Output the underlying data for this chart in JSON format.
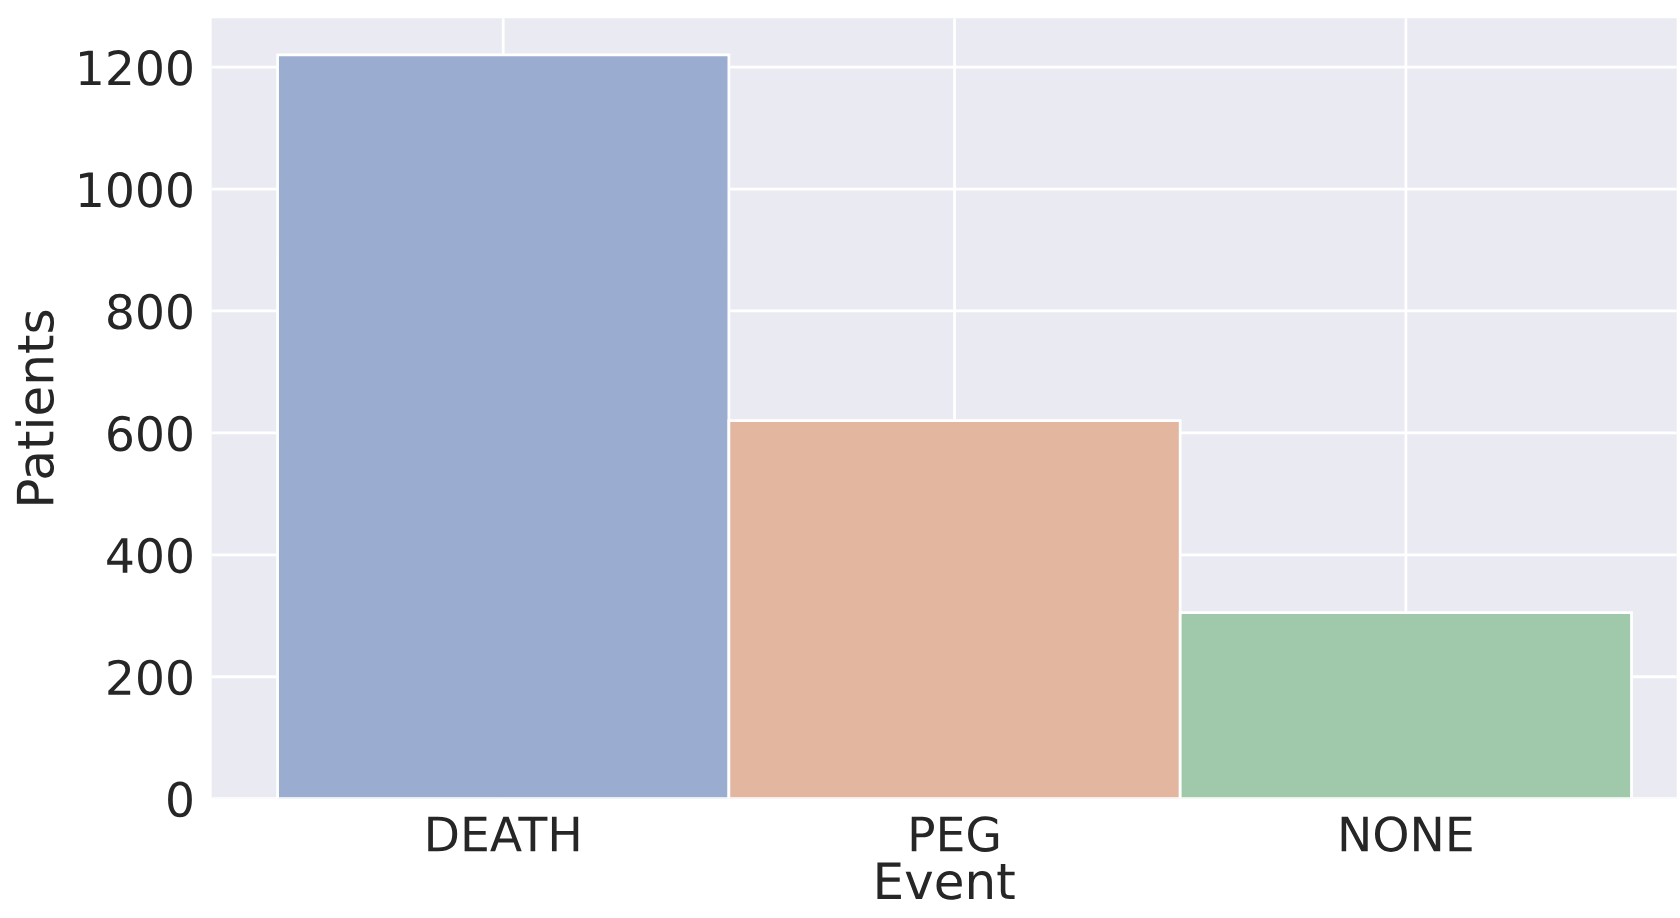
{
  "chart_data": {
    "type": "bar",
    "xlabel": "Event",
    "ylabel": "Patients",
    "categories": [
      "DEATH",
      "PEG",
      "NONE"
    ],
    "values": [
      1220,
      620,
      305
    ],
    "colors": [
      "#9aadd1",
      "#e3b6a0",
      "#a0c8ab"
    ],
    "ylim": [
      0,
      1280
    ],
    "yticks": [
      0,
      200,
      400,
      600,
      800,
      1000,
      1200
    ],
    "grid": true,
    "legend": false
  }
}
